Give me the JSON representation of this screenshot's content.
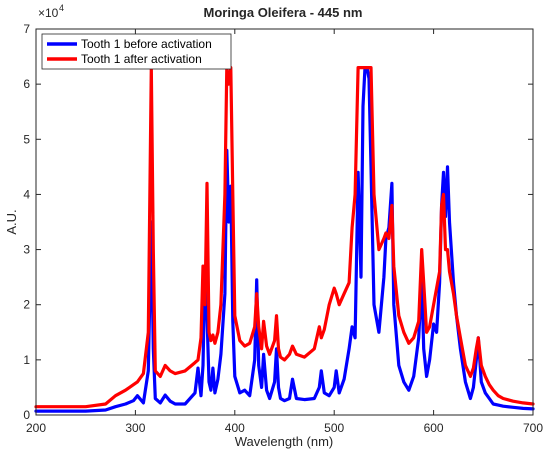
{
  "chart_data": {
    "type": "line",
    "title": "Moringa Oleifera - 445 nm",
    "xlabel": "Wavelength (nm)",
    "ylabel": "A.U.",
    "y_multiplier_label": "×10",
    "y_multiplier_exponent": "4",
    "xlim": [
      200,
      700
    ],
    "ylim": [
      0,
      70000
    ],
    "xticks": [
      200,
      300,
      400,
      500,
      600,
      700
    ],
    "yticks": [
      0,
      10000,
      20000,
      30000,
      40000,
      50000,
      60000,
      70000
    ],
    "ytick_labels": [
      "0",
      "1",
      "2",
      "3",
      "4",
      "5",
      "6",
      "7"
    ],
    "grid": false,
    "legend_position": "top-left",
    "series": [
      {
        "name": "Tooth 1 before activation",
        "color": "#0000ff",
        "x": [
          200,
          250,
          270,
          280,
          290,
          298,
          302,
          308,
          313,
          316,
          318,
          320,
          325,
          330,
          335,
          340,
          350,
          360,
          363,
          366,
          368,
          370,
          372,
          374,
          376,
          378,
          380,
          383,
          386,
          390,
          392,
          394,
          396,
          398,
          400,
          405,
          410,
          415,
          420,
          422,
          424,
          427,
          429,
          432,
          435,
          440,
          442,
          444,
          446,
          450,
          455,
          458,
          462,
          470,
          480,
          485,
          487,
          490,
          495,
          500,
          502,
          505,
          510,
          515,
          518,
          521,
          524,
          527,
          529,
          531,
          533,
          535,
          537,
          540,
          545,
          550,
          552,
          555,
          558,
          560,
          565,
          570,
          575,
          580,
          585,
          588,
          590,
          593,
          596,
          600,
          603,
          606,
          608,
          610,
          612,
          614,
          616,
          620,
          623,
          627,
          632,
          637,
          640,
          643,
          645,
          648,
          652,
          656,
          660,
          665,
          670,
          680,
          690,
          700
        ],
        "y": [
          700,
          700,
          900,
          1500,
          2000,
          2600,
          3500,
          2200,
          8000,
          35000,
          12000,
          3000,
          2200,
          3600,
          2500,
          2000,
          2000,
          4000,
          8500,
          3500,
          9000,
          27000,
          18000,
          6000,
          4500,
          8500,
          4000,
          6500,
          11000,
          22000,
          48000,
          35000,
          41500,
          17000,
          7000,
          4000,
          4500,
          3500,
          10000,
          24500,
          9000,
          5000,
          11000,
          4500,
          3000,
          6000,
          12000,
          5000,
          3000,
          2600,
          3000,
          6500,
          3000,
          2800,
          3000,
          5000,
          8000,
          4000,
          3500,
          5000,
          8000,
          4000,
          6500,
          12000,
          16000,
          14000,
          44000,
          25000,
          56000,
          63000,
          63000,
          61000,
          45000,
          20000,
          15000,
          25000,
          32000,
          34000,
          42000,
          20000,
          9000,
          6000,
          4500,
          7000,
          14000,
          25000,
          12000,
          7000,
          10000,
          16500,
          15000,
          24000,
          38000,
          44000,
          36000,
          45000,
          35000,
          24000,
          18000,
          12000,
          6000,
          3000,
          5000,
          10000,
          14000,
          6000,
          4000,
          3000,
          2000,
          1800,
          1600,
          1400,
          1200,
          1100
        ]
      },
      {
        "name": "Tooth 1 after activation",
        "color": "#ff0000",
        "x": [
          200,
          250,
          270,
          280,
          290,
          298,
          302,
          308,
          313,
          316,
          318,
          320,
          325,
          330,
          335,
          340,
          350,
          360,
          363,
          366,
          368,
          370,
          372,
          374,
          376,
          378,
          380,
          383,
          386,
          390,
          392,
          394,
          396,
          398,
          400,
          405,
          410,
          415,
          420,
          422,
          424,
          427,
          429,
          432,
          435,
          440,
          442,
          444,
          446,
          450,
          455,
          458,
          462,
          470,
          480,
          485,
          487,
          490,
          495,
          500,
          502,
          505,
          510,
          515,
          518,
          521,
          524,
          527,
          529,
          531,
          533,
          535,
          537,
          540,
          545,
          550,
          552,
          555,
          558,
          560,
          565,
          570,
          575,
          580,
          585,
          588,
          590,
          593,
          596,
          600,
          603,
          606,
          608,
          610,
          612,
          614,
          616,
          620,
          623,
          627,
          632,
          637,
          640,
          643,
          645,
          648,
          652,
          656,
          660,
          665,
          670,
          680,
          690,
          700
        ],
        "y": [
          1500,
          1500,
          2000,
          3500,
          4500,
          5500,
          6000,
          7500,
          15000,
          63000,
          30000,
          8000,
          7000,
          9000,
          8000,
          7500,
          8000,
          9500,
          10000,
          14000,
          27000,
          20000,
          42000,
          15000,
          13500,
          14500,
          13000,
          15000,
          20000,
          40000,
          63000,
          60000,
          63000,
          40000,
          18000,
          13500,
          12500,
          13000,
          16000,
          22000,
          16000,
          12000,
          17000,
          12500,
          11000,
          13500,
          18000,
          12000,
          10500,
          10000,
          11000,
          12500,
          11000,
          10500,
          12000,
          16000,
          14000,
          15500,
          20000,
          23000,
          22000,
          20000,
          22000,
          24000,
          34000,
          40000,
          63000,
          63000,
          63000,
          63000,
          63000,
          63000,
          63000,
          40000,
          30000,
          32000,
          33000,
          32000,
          38000,
          27000,
          18000,
          15000,
          13000,
          14000,
          17000,
          30000,
          24000,
          15000,
          16000,
          20000,
          23000,
          26000,
          38000,
          40000,
          30000,
          30000,
          26000,
          22000,
          18000,
          14000,
          9000,
          7000,
          8500,
          12000,
          14000,
          9000,
          7000,
          5500,
          4500,
          3500,
          3000,
          2500,
          2200,
          2000
        ]
      }
    ]
  }
}
